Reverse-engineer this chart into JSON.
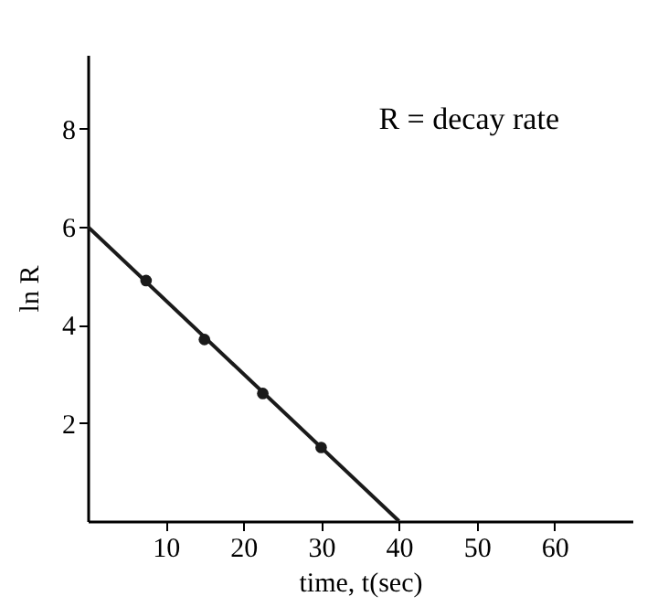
{
  "chart_data": {
    "type": "scatter",
    "xlabel": "time, t(sec)",
    "ylabel": "ln R",
    "annotations": [
      "R = decay rate"
    ],
    "x": [
      7.5,
      15,
      22.5,
      30
    ],
    "series": [
      {
        "type": "line",
        "color": "#1a1a1a",
        "x": [
          0,
          40
        ],
        "values": [
          6,
          0
        ],
        "marker": "none"
      },
      {
        "color": "#1a1a1a",
        "values": [
          4.9,
          3.7,
          2.6,
          1.5
        ],
        "marker": "circle"
      }
    ],
    "xlim": [
      0,
      70
    ],
    "ylim": [
      0,
      9.5
    ],
    "xticks": [
      10,
      20,
      30,
      40,
      50,
      60
    ],
    "yticks": [
      2,
      4,
      6,
      8
    ],
    "grid": false
  }
}
